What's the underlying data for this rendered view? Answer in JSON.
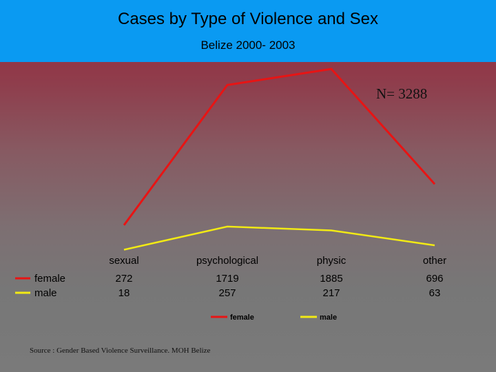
{
  "header": {
    "title": "Cases by Type of Violence and Sex",
    "subtitle": "Belize 2000- 2003"
  },
  "annotation": "N= 3288",
  "source": "Source : Gender Based Violence Surveillance. MOH Belize",
  "colors": {
    "header_bg": "#0a9af2",
    "female": "#e81414",
    "male": "#f2ea14"
  },
  "chart_data": {
    "type": "line",
    "title": "Cases by Type of Violence and Sex",
    "subtitle": "Belize 2000- 2003",
    "categories": [
      "sexual",
      "psychological",
      "physic",
      "other"
    ],
    "series": [
      {
        "name": "female",
        "values": [
          272,
          1719,
          1885,
          696
        ],
        "color": "#e81414"
      },
      {
        "name": "male",
        "values": [
          18,
          257,
          217,
          63
        ],
        "color": "#f2ea14"
      }
    ],
    "ylim": [
      0,
      1900
    ],
    "grid": false,
    "legend_placement": "bottom",
    "data_table": true
  }
}
